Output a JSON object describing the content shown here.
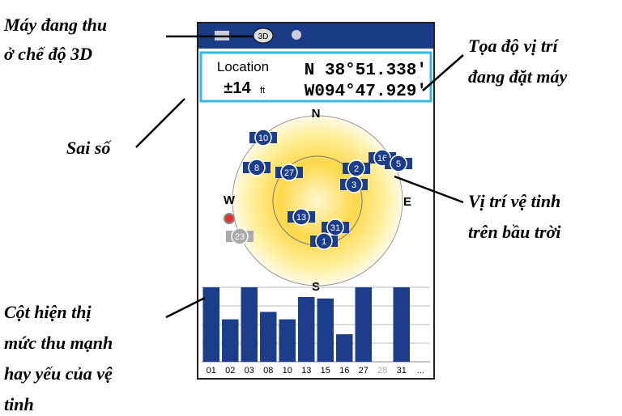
{
  "annotations": {
    "mode": [
      "Máy đang thu",
      "ở chế độ 3D"
    ],
    "coords": [
      "Tọa độ vị trí",
      "đang đặt máy"
    ],
    "error": [
      "Sai số"
    ],
    "sky": [
      "Vị trí vệ tinh",
      "trên bầu trời"
    ],
    "bars": [
      "Cột hiện thị",
      "mức thu mạnh",
      "hay yếu của vệ",
      "tinh"
    ]
  },
  "status_bar": {
    "mode_icon": "3D"
  },
  "location": {
    "label": "Location",
    "accuracy": "±14",
    "unit": "ft",
    "lat": "N  38°51.338'",
    "lon": "W094°47.929'"
  },
  "sky": {
    "compass": {
      "n": "N",
      "e": "E",
      "s": "S",
      "w": "W"
    },
    "satellites": [
      "10",
      "8",
      "27",
      "2",
      "3",
      "16",
      "5",
      "13",
      "31",
      "1",
      "23"
    ]
  },
  "signal_bars": {
    "categories": [
      "01",
      "02",
      "03",
      "08",
      "10",
      "13",
      "15",
      "16",
      "27",
      "28",
      "31",
      "..."
    ],
    "values": [
      100,
      57,
      100,
      67,
      57,
      87,
      85,
      37,
      100,
      0,
      100,
      null
    ],
    "color": "#1c3d8a"
  }
}
